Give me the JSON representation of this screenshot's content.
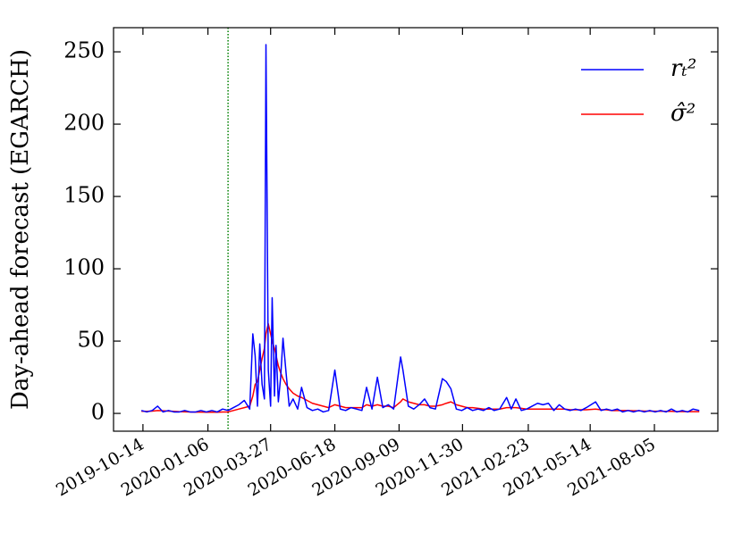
{
  "chart_data": {
    "type": "line",
    "ylabel": "Day-ahead forecast (EGARCH)",
    "x": [
      "2019-10-12",
      "2019-10-19",
      "2019-10-26",
      "2019-11-02",
      "2019-11-09",
      "2019-11-16",
      "2019-11-23",
      "2019-11-30",
      "2019-12-07",
      "2019-12-14",
      "2019-12-21",
      "2019-12-28",
      "2020-01-04",
      "2020-01-11",
      "2020-01-18",
      "2020-01-25",
      "2020-02-01",
      "2020-02-08",
      "2020-02-15",
      "2020-02-22",
      "2020-02-29",
      "2020-03-04",
      "2020-03-07",
      "2020-03-10",
      "2020-03-13",
      "2020-03-16",
      "2020-03-19",
      "2020-03-21",
      "2020-03-24",
      "2020-03-27",
      "2020-03-29",
      "2020-04-01",
      "2020-04-03",
      "2020-04-06",
      "2020-04-09",
      "2020-04-12",
      "2020-04-16",
      "2020-04-20",
      "2020-04-25",
      "2020-05-01",
      "2020-05-06",
      "2020-05-13",
      "2020-05-20",
      "2020-05-27",
      "2020-06-03",
      "2020-06-10",
      "2020-06-18",
      "2020-06-25",
      "2020-07-02",
      "2020-07-09",
      "2020-07-16",
      "2020-07-23",
      "2020-07-29",
      "2020-08-05",
      "2020-08-12",
      "2020-08-19",
      "2020-08-26",
      "2020-09-02",
      "2020-09-11",
      "2020-09-14",
      "2020-09-21",
      "2020-09-28",
      "2020-10-05",
      "2020-10-12",
      "2020-10-19",
      "2020-10-26",
      "2020-11-04",
      "2020-11-09",
      "2020-11-15",
      "2020-11-22",
      "2020-11-29",
      "2020-12-06",
      "2020-12-13",
      "2020-12-20",
      "2020-12-27",
      "2021-01-03",
      "2021-01-10",
      "2021-01-17",
      "2021-01-26",
      "2021-02-01",
      "2021-02-07",
      "2021-02-14",
      "2021-02-21",
      "2021-02-28",
      "2021-03-07",
      "2021-03-14",
      "2021-03-21",
      "2021-03-28",
      "2021-04-04",
      "2021-04-11",
      "2021-04-18",
      "2021-04-25",
      "2021-05-02",
      "2021-05-09",
      "2021-05-21",
      "2021-05-28",
      "2021-06-04",
      "2021-06-11",
      "2021-06-18",
      "2021-06-25",
      "2021-07-02",
      "2021-07-09",
      "2021-07-16",
      "2021-07-23",
      "2021-07-30",
      "2021-08-06",
      "2021-08-13",
      "2021-08-20",
      "2021-08-27",
      "2021-09-03",
      "2021-09-10",
      "2021-09-17",
      "2021-09-24",
      "2021-10-02"
    ],
    "series": [
      {
        "name": "rₜ²",
        "color": "#0000ff",
        "values": [
          2,
          1,
          2,
          5,
          1,
          2,
          1,
          1,
          2,
          1,
          1,
          2,
          1,
          2,
          1,
          3,
          2,
          4,
          6,
          9,
          3,
          55,
          40,
          5,
          48,
          20,
          10,
          255,
          30,
          5,
          80,
          12,
          47,
          8,
          25,
          52,
          28,
          5,
          10,
          3,
          18,
          4,
          2,
          3,
          1,
          2,
          30,
          3,
          2,
          4,
          3,
          2,
          18,
          3,
          25,
          4,
          6,
          3,
          39,
          30,
          5,
          3,
          6,
          10,
          4,
          3,
          24,
          22,
          17,
          3,
          2,
          4,
          2,
          3,
          2,
          4,
          2,
          3,
          11,
          3,
          10,
          2,
          3,
          5,
          7,
          6,
          7,
          2,
          6,
          3,
          2,
          3,
          2,
          4,
          8,
          2,
          3,
          2,
          3,
          1,
          2,
          1,
          2,
          1,
          2,
          1,
          2,
          1,
          3,
          1,
          2,
          1,
          3,
          2
        ]
      },
      {
        "name": "σ̂²",
        "color": "#ff0000",
        "values": [
          1.5,
          1.4,
          1.6,
          2,
          1.8,
          1.6,
          1.4,
          1.2,
          1.1,
          1,
          0.9,
          0.9,
          0.8,
          0.9,
          0.8,
          1,
          1,
          2,
          3,
          4,
          5,
          12,
          20,
          22,
          30,
          38,
          45,
          55,
          62,
          55,
          50,
          45,
          40,
          33,
          28,
          24,
          20,
          17,
          14,
          12,
          11,
          9,
          7,
          6,
          5,
          4,
          6,
          5,
          4,
          4,
          4,
          4,
          6,
          5,
          6,
          5,
          5,
          4,
          8,
          10,
          8,
          7,
          6,
          6,
          5,
          5,
          6,
          7,
          8,
          6,
          5,
          4,
          4,
          3.5,
          3,
          3,
          3,
          3,
          4,
          4,
          4,
          3.5,
          3,
          3,
          3,
          3,
          3,
          3,
          3,
          3,
          2.5,
          2.5,
          2.5,
          2.5,
          3,
          2.5,
          2.5,
          2,
          2,
          2,
          2,
          1.8,
          1.8,
          1.6,
          1.6,
          1.5,
          1.5,
          1.4,
          1.4,
          1.3,
          1.3,
          1.2,
          1.2,
          1.2
        ]
      }
    ],
    "vline": "2020-02-01",
    "vline_color": "#008000",
    "xlim": [
      "2019-09-06",
      "2021-10-26"
    ],
    "xticks": [
      "2019-10-14",
      "2020-01-06",
      "2020-03-27",
      "2020-06-18",
      "2020-09-09",
      "2020-11-30",
      "2021-02-23",
      "2021-05-14",
      "2021-08-05"
    ],
    "ylim": [
      -12.3,
      266.7
    ],
    "yticks": [
      0,
      50,
      100,
      150,
      200,
      250
    ],
    "legend": "upper right"
  }
}
